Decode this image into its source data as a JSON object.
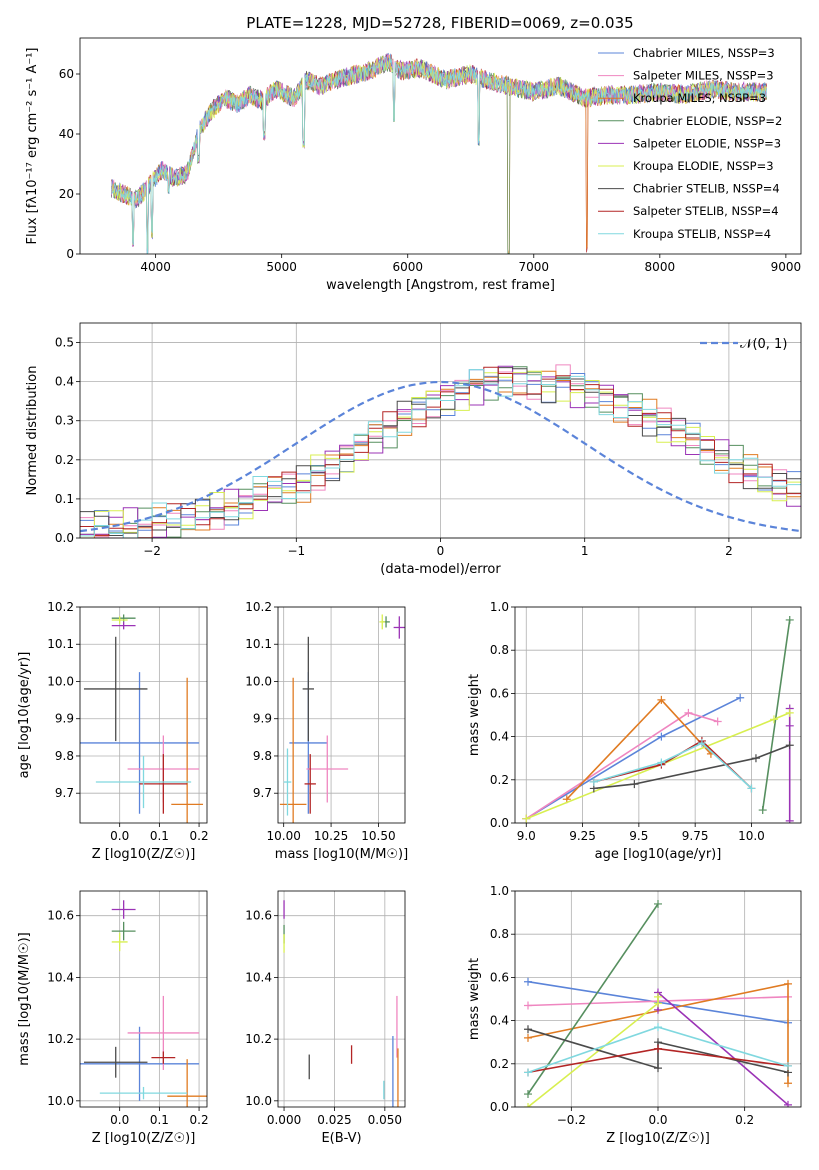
{
  "figure": {
    "title": "PLATE=1228, MJD=52728, FIBERID=0069, z=0.035",
    "colors": {
      "Chabrier MILES": "#5b84d9",
      "Salpeter MILES": "#ef86c0",
      "Kroupa MILES": "#e07b22",
      "Chabrier ELODIE": "#568f5f",
      "Salpeter ELODIE": "#9b33b6",
      "Kroupa ELODIE": "#d8ef50",
      "Chabrier STELIB": "#4b4b4b",
      "Salpeter STELIB": "#b32525",
      "Kroupa STELIB": "#80d8df"
    },
    "models": [
      "Chabrier MILES",
      "Salpeter MILES",
      "Kroupa MILES",
      "Chabrier ELODIE",
      "Salpeter ELODIE",
      "Kroupa ELODIE",
      "Chabrier STELIB",
      "Salpeter STELIB",
      "Kroupa STELIB"
    ]
  },
  "chart_data": [
    {
      "id": "spectrum",
      "type": "line",
      "xlabel": "wavelength [Angstrom, rest frame]",
      "ylabel": "Flux [fλ10⁻¹⁷ erg cm⁻² s⁻¹ A⁻¹]",
      "xlim": [
        3400,
        9120
      ],
      "ylim": [
        0,
        72
      ],
      "xticks": [
        4000,
        5000,
        6000,
        7000,
        8000,
        9000
      ],
      "yticks": [
        0,
        20,
        40,
        60
      ],
      "legend_position": "top-right",
      "legend": [
        "Chabrier MILES, NSSP=3",
        "Salpeter MILES, NSSP=3",
        "Kroupa MILES, NSSP=3",
        "Chabrier ELODIE, NSSP=2",
        "Salpeter ELODIE, NSSP=3",
        "Kroupa ELODIE, NSSP=3",
        "Chabrier STELIB, NSSP=4",
        "Salpeter STELIB, NSSP=4",
        "Kroupa STELIB, NSSP=4"
      ],
      "continuum": [
        [
          3650,
          22
        ],
        [
          3750,
          20
        ],
        [
          3850,
          18
        ],
        [
          3950,
          23
        ],
        [
          4050,
          28
        ],
        [
          4150,
          25
        ],
        [
          4250,
          27
        ],
        [
          4350,
          42
        ],
        [
          4450,
          48
        ],
        [
          4550,
          52
        ],
        [
          4650,
          50
        ],
        [
          4750,
          53
        ],
        [
          4850,
          51
        ],
        [
          4950,
          55
        ],
        [
          5100,
          52
        ],
        [
          5200,
          58
        ],
        [
          5300,
          56
        ],
        [
          5500,
          59
        ],
        [
          5700,
          61
        ],
        [
          5850,
          64
        ],
        [
          5950,
          61
        ],
        [
          6100,
          62
        ],
        [
          6300,
          58
        ],
        [
          6500,
          60
        ],
        [
          6700,
          57
        ],
        [
          6900,
          55
        ],
        [
          7000,
          54
        ],
        [
          7200,
          56
        ],
        [
          7400,
          52
        ],
        [
          7600,
          53
        ],
        [
          7800,
          53
        ],
        [
          8000,
          54
        ],
        [
          8200,
          53
        ],
        [
          8400,
          55
        ],
        [
          8600,
          54
        ],
        [
          8850,
          54
        ]
      ],
      "dips": [
        [
          3820,
          2
        ],
        [
          3935,
          0
        ],
        [
          3970,
          5
        ],
        [
          4102,
          20
        ],
        [
          4340,
          30
        ],
        [
          4861,
          38
        ],
        [
          5175,
          35
        ],
        [
          5890,
          44
        ],
        [
          6563,
          36
        ],
        [
          6800,
          0
        ],
        [
          7420,
          0
        ]
      ]
    },
    {
      "id": "residuals",
      "type": "bar",
      "xlabel": "(data-model)/error",
      "ylabel": "Normed distribution",
      "xlim": [
        -2.5,
        2.5
      ],
      "ylim": [
        0,
        0.55
      ],
      "xticks": [
        -2,
        -1,
        0,
        1,
        2
      ],
      "yticks": [
        0.0,
        0.1,
        0.2,
        0.3,
        0.4,
        0.5
      ],
      "legend": [
        "𝒩(0, 1)"
      ],
      "legend_position": "top-right",
      "bin_edges_start": -2.5,
      "bin_width": 0.1,
      "histograms": [
        {
          "model": "Chabrier MILES",
          "values": [
            0.02,
            0.03,
            0.03,
            0.03,
            0.03,
            0.04,
            0.04,
            0.05,
            0.06,
            0.07,
            0.08,
            0.09,
            0.11,
            0.12,
            0.13,
            0.14,
            0.17,
            0.19,
            0.21,
            0.23,
            0.26,
            0.28,
            0.31,
            0.33,
            0.35,
            0.36,
            0.37,
            0.39,
            0.4,
            0.41,
            0.41,
            0.4,
            0.39,
            0.4,
            0.38,
            0.37,
            0.36,
            0.34,
            0.33,
            0.31,
            0.29,
            0.27,
            0.25,
            0.23,
            0.21,
            0.19,
            0.17,
            0.15,
            0.13,
            0.12
          ]
        }
      ],
      "normal_curve": {
        "mu": 0,
        "sigma": 1
      }
    },
    {
      "id": "age_vs_Z",
      "type": "scatter",
      "xlabel": "Z [log10(Z/Z☉)]",
      "ylabel": "age  [log10(age/yr)]",
      "xlim": [
        -0.1,
        0.22
      ],
      "ylim": [
        9.62,
        10.2
      ],
      "xticks": [
        0.0,
        0.1,
        0.2
      ],
      "yticks": [
        9.7,
        9.8,
        9.9,
        10.0,
        10.1,
        10.2
      ],
      "points": [
        {
          "model": "Chabrier MILES",
          "x": 0.05,
          "y": 9.835,
          "xerr": 0.15,
          "yerr": 0.19
        },
        {
          "model": "Salpeter MILES",
          "x": 0.11,
          "y": 9.765,
          "xerr": 0.09,
          "yerr": 0.09
        },
        {
          "model": "Kroupa MILES",
          "x": 0.17,
          "y": 9.67,
          "xerr": 0.04,
          "yerr": 0.34
        },
        {
          "model": "Chabrier ELODIE",
          "x": 0.01,
          "y": 10.17,
          "xerr": 0.03,
          "yerr": 0.01
        },
        {
          "model": "Salpeter ELODIE",
          "x": 0.01,
          "y": 10.15,
          "xerr": 0.03,
          "yerr": 0.01
        },
        {
          "model": "Kroupa ELODIE",
          "x": 0.0,
          "y": 10.165,
          "xerr": 0.02,
          "yerr": 0.01
        },
        {
          "model": "Chabrier STELIB",
          "x": -0.01,
          "y": 9.98,
          "xerr": 0.08,
          "yerr": 0.14
        },
        {
          "model": "Salpeter STELIB",
          "x": 0.11,
          "y": 9.725,
          "xerr": 0.06,
          "yerr": 0.08
        },
        {
          "model": "Kroupa STELIB",
          "x": 0.06,
          "y": 9.73,
          "xerr": 0.12,
          "yerr": 0.07
        }
      ]
    },
    {
      "id": "age_vs_mass",
      "type": "scatter",
      "xlabel": "mass [log10(M/M☉)]",
      "ylabel": "",
      "xlim": [
        9.97,
        10.64
      ],
      "ylim": [
        9.62,
        10.2
      ],
      "xticks": [
        10.0,
        10.25,
        10.5
      ],
      "yticks": [
        9.7,
        9.8,
        9.9,
        10.0,
        10.1,
        10.2
      ],
      "points": [
        {
          "model": "Chabrier MILES",
          "x": 10.13,
          "y": 9.835,
          "xerr": 0.1,
          "yerr": 0.19
        },
        {
          "model": "Salpeter MILES",
          "x": 10.23,
          "y": 9.765,
          "xerr": 0.11,
          "yerr": 0.09
        },
        {
          "model": "Kroupa MILES",
          "x": 10.05,
          "y": 9.67,
          "xerr": 0.07,
          "yerr": 0.34
        },
        {
          "model": "Chabrier ELODIE",
          "x": 10.54,
          "y": 10.16,
          "xerr": 0.02,
          "yerr": 0.015
        },
        {
          "model": "Salpeter ELODIE",
          "x": 10.61,
          "y": 10.145,
          "xerr": 0.03,
          "yerr": 0.03
        },
        {
          "model": "Kroupa ELODIE",
          "x": 10.52,
          "y": 10.16,
          "xerr": 0.015,
          "yerr": 0.02
        },
        {
          "model": "Chabrier STELIB",
          "x": 10.13,
          "y": 9.98,
          "xerr": 0.03,
          "yerr": 0.14
        },
        {
          "model": "Salpeter STELIB",
          "x": 10.14,
          "y": 9.725,
          "xerr": 0.03,
          "yerr": 0.08
        },
        {
          "model": "Kroupa STELIB",
          "x": 10.02,
          "y": 9.73,
          "xerr": 0.02,
          "yerr": 0.09
        }
      ]
    },
    {
      "id": "weight_vs_age",
      "type": "line",
      "xlabel": "age  [log10(age/yr)]",
      "ylabel": "mass weight",
      "xlim": [
        8.95,
        10.22
      ],
      "ylim": [
        0.0,
        1.0
      ],
      "xticks": [
        9.0,
        9.25,
        9.5,
        9.75,
        10.0
      ],
      "yticks": [
        0.0,
        0.2,
        0.4,
        0.6,
        0.8,
        1.0
      ],
      "series": [
        {
          "model": "Chabrier MILES",
          "x": [
            9.0,
            9.6,
            9.95
          ],
          "y": [
            0.02,
            0.4,
            0.58
          ]
        },
        {
          "model": "Salpeter MILES",
          "x": [
            9.0,
            9.72,
            9.85
          ],
          "y": [
            0.02,
            0.51,
            0.47
          ]
        },
        {
          "model": "Kroupa MILES",
          "x": [
            9.18,
            9.6,
            9.82
          ],
          "y": [
            0.11,
            0.57,
            0.32
          ]
        },
        {
          "model": "Chabrier ELODIE",
          "x": [
            10.05,
            10.17
          ],
          "y": [
            0.06,
            0.94
          ]
        },
        {
          "model": "Salpeter ELODIE",
          "x": [
            10.17,
            10.17,
            10.17
          ],
          "y": [
            0.01,
            0.45,
            0.53
          ]
        },
        {
          "model": "Kroupa ELODIE",
          "x": [
            9.0,
            10.1,
            10.17
          ],
          "y": [
            0.02,
            0.48,
            0.51
          ]
        },
        {
          "model": "Chabrier STELIB",
          "x": [
            9.3,
            9.48,
            10.02,
            10.17
          ],
          "y": [
            0.16,
            0.18,
            0.3,
            0.36
          ]
        },
        {
          "model": "Salpeter STELIB",
          "x": [
            9.3,
            9.6,
            9.78,
            10.0
          ],
          "y": [
            0.19,
            0.27,
            0.38,
            0.16
          ]
        },
        {
          "model": "Kroupa STELIB",
          "x": [
            9.3,
            9.6,
            9.78,
            10.0
          ],
          "y": [
            0.19,
            0.28,
            0.37,
            0.16
          ]
        }
      ]
    },
    {
      "id": "mass_vs_Z",
      "type": "scatter",
      "xlabel": "Z [log10(Z/Z☉)]",
      "ylabel": "mass [log10(M/M☉)]",
      "xlim": [
        -0.1,
        0.22
      ],
      "ylim": [
        9.98,
        10.68
      ],
      "xticks": [
        0.0,
        0.1,
        0.2
      ],
      "yticks": [
        10.0,
        10.2,
        10.4,
        10.6
      ],
      "points": [
        {
          "model": "Chabrier MILES",
          "x": 0.05,
          "y": 10.12,
          "xerr": 0.15,
          "yerr": 0.12
        },
        {
          "model": "Salpeter MILES",
          "x": 0.11,
          "y": 10.22,
          "xerr": 0.09,
          "yerr": 0.12
        },
        {
          "model": "Kroupa MILES",
          "x": 0.17,
          "y": 10.015,
          "xerr": 0.05,
          "yerr": 0.12
        },
        {
          "model": "Chabrier ELODIE",
          "x": 0.01,
          "y": 10.55,
          "xerr": 0.03,
          "yerr": 0.03
        },
        {
          "model": "Salpeter ELODIE",
          "x": 0.01,
          "y": 10.62,
          "xerr": 0.03,
          "yerr": 0.03
        },
        {
          "model": "Kroupa ELODIE",
          "x": 0.0,
          "y": 10.515,
          "xerr": 0.02,
          "yerr": 0.03
        },
        {
          "model": "Chabrier STELIB",
          "x": -0.01,
          "y": 10.125,
          "xerr": 0.08,
          "yerr": 0.05
        },
        {
          "model": "Salpeter STELIB",
          "x": 0.11,
          "y": 10.14,
          "xerr": 0.03,
          "yerr": 0.02
        },
        {
          "model": "Kroupa STELIB",
          "x": 0.06,
          "y": 10.025,
          "xerr": 0.11,
          "yerr": 0.02
        }
      ]
    },
    {
      "id": "mass_vs_ebv",
      "type": "scatter",
      "xlabel": "E(B-V)",
      "ylabel": "",
      "xlim": [
        -0.003,
        0.06
      ],
      "ylim": [
        9.98,
        10.68
      ],
      "xticks": [
        0.0,
        0.025,
        0.05
      ],
      "yticks": [
        10.0,
        10.2,
        10.4,
        10.6
      ],
      "points": [
        {
          "model": "Chabrier MILES",
          "x": 0.054,
          "y": 10.09,
          "xerr": 0.0,
          "yerr": 0.12
        },
        {
          "model": "Salpeter MILES",
          "x": 0.056,
          "y": 10.24,
          "xerr": 0.0,
          "yerr": 0.1
        },
        {
          "model": "Kroupa MILES",
          "x": 0.0565,
          "y": 10.05,
          "xerr": 0.0,
          "yerr": 0.12
        },
        {
          "model": "Chabrier ELODIE",
          "x": 0.0,
          "y": 10.54,
          "xerr": 0.0,
          "yerr": 0.03
        },
        {
          "model": "Salpeter ELODIE",
          "x": 0.0,
          "y": 10.62,
          "xerr": 0.0,
          "yerr": 0.03
        },
        {
          "model": "Kroupa ELODIE",
          "x": 0.0,
          "y": 10.51,
          "xerr": 0.0,
          "yerr": 0.03
        },
        {
          "model": "Chabrier STELIB",
          "x": 0.0125,
          "y": 10.11,
          "xerr": 0.0,
          "yerr": 0.04
        },
        {
          "model": "Salpeter STELIB",
          "x": 0.0335,
          "y": 10.15,
          "xerr": 0.0,
          "yerr": 0.03
        },
        {
          "model": "Kroupa STELIB",
          "x": 0.0495,
          "y": 10.035,
          "xerr": 0.0,
          "yerr": 0.03
        }
      ]
    },
    {
      "id": "weight_vs_Z",
      "type": "line",
      "xlabel": "Z [log10(Z/Z☉)]",
      "ylabel": "mass weight",
      "xlim": [
        -0.33,
        0.33
      ],
      "ylim": [
        0.0,
        1.0
      ],
      "xticks": [
        -0.2,
        0.0,
        0.2
      ],
      "yticks": [
        0.0,
        0.2,
        0.4,
        0.6,
        0.8,
        1.0
      ],
      "series": [
        {
          "model": "Chabrier MILES",
          "x": [
            -0.3,
            0.3
          ],
          "y": [
            0.58,
            0.39
          ]
        },
        {
          "model": "Salpeter MILES",
          "x": [
            -0.3,
            0.3
          ],
          "y": [
            0.47,
            0.51
          ]
        },
        {
          "model": "Kroupa MILES",
          "x": [
            -0.3,
            0.3,
            0.3
          ],
          "y": [
            0.32,
            0.57,
            0.11
          ]
        },
        {
          "model": "Chabrier ELODIE",
          "x": [
            -0.3,
            0.0
          ],
          "y": [
            0.06,
            0.94
          ]
        },
        {
          "model": "Salpeter ELODIE",
          "x": [
            0.0,
            0.0,
            0.3
          ],
          "y": [
            0.45,
            0.53,
            0.01
          ]
        },
        {
          "model": "Kroupa ELODIE",
          "x": [
            -0.3,
            0.0,
            0.0
          ],
          "y": [
            0.0,
            0.48,
            0.51
          ]
        },
        {
          "model": "Chabrier STELIB",
          "x": [
            -0.3,
            0.0,
            0.0,
            0.3
          ],
          "y": [
            0.36,
            0.18,
            0.3,
            0.16
          ]
        },
        {
          "model": "Salpeter STELIB",
          "x": [
            -0.3,
            0.0,
            0.3
          ],
          "y": [
            0.16,
            0.27,
            0.19
          ]
        },
        {
          "model": "Kroupa STELIB",
          "x": [
            -0.3,
            0.0,
            0.3
          ],
          "y": [
            0.16,
            0.37,
            0.19
          ]
        }
      ]
    }
  ]
}
